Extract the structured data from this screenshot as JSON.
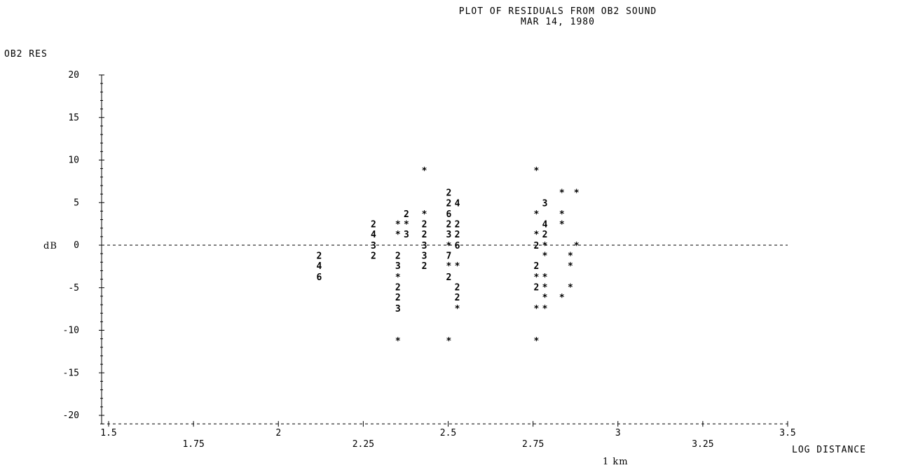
{
  "chart_data": {
    "type": "scatter",
    "title": "PLOT OF RESIDUALS FROM OB2 SOUND",
    "subtitle": "MAR 14, 1980",
    "ylabel": "OB2 RES",
    "ylabel_unit": "dB",
    "xlabel": "LOG DISTANCE",
    "x_annotation": "1 km",
    "xlim": [
      1.5,
      3.5
    ],
    "ylim": [
      -21,
      20
    ],
    "x_ticks": [
      "1.5",
      "1.75",
      "2",
      "2.25",
      "2.5",
      "2.75",
      "3",
      "3.25",
      "3.5"
    ],
    "y_ticks": [
      "20",
      "15",
      "10",
      "5",
      "0",
      "-5",
      "-10",
      "-15",
      "-20"
    ],
    "zero_line": true,
    "points": [
      {
        "x": 2.12,
        "y": -1.2,
        "label": "2"
      },
      {
        "x": 2.12,
        "y": -2.4,
        "label": "4"
      },
      {
        "x": 2.12,
        "y": -3.7,
        "label": "6"
      },
      {
        "x": 2.28,
        "y": 2.5,
        "label": "2"
      },
      {
        "x": 2.28,
        "y": 1.3,
        "label": "4"
      },
      {
        "x": 2.28,
        "y": 0.0,
        "label": "3"
      },
      {
        "x": 2.28,
        "y": -1.2,
        "label": "2"
      },
      {
        "x": 2.352,
        "y": 2.5,
        "label": "*"
      },
      {
        "x": 2.352,
        "y": 1.3,
        "label": "*"
      },
      {
        "x": 2.352,
        "y": -1.2,
        "label": "2"
      },
      {
        "x": 2.352,
        "y": -2.4,
        "label": "3"
      },
      {
        "x": 2.352,
        "y": -3.7,
        "label": "*"
      },
      {
        "x": 2.352,
        "y": -4.9,
        "label": "2"
      },
      {
        "x": 2.352,
        "y": -6.1,
        "label": "2"
      },
      {
        "x": 2.352,
        "y": -7.4,
        "label": "3"
      },
      {
        "x": 2.352,
        "y": -11.2,
        "label": "*"
      },
      {
        "x": 2.377,
        "y": 3.7,
        "label": "2"
      },
      {
        "x": 2.377,
        "y": 2.5,
        "label": "*"
      },
      {
        "x": 2.377,
        "y": 1.3,
        "label": "3"
      },
      {
        "x": 2.43,
        "y": 8.8,
        "label": "*"
      },
      {
        "x": 2.43,
        "y": 3.7,
        "label": "*"
      },
      {
        "x": 2.43,
        "y": 2.5,
        "label": "2"
      },
      {
        "x": 2.43,
        "y": 1.3,
        "label": "2"
      },
      {
        "x": 2.43,
        "y": 0.0,
        "label": "3"
      },
      {
        "x": 2.43,
        "y": -1.2,
        "label": "3"
      },
      {
        "x": 2.43,
        "y": -2.4,
        "label": "2"
      },
      {
        "x": 2.502,
        "y": 6.2,
        "label": "2"
      },
      {
        "x": 2.502,
        "y": 5.0,
        "label": "2"
      },
      {
        "x": 2.502,
        "y": 3.7,
        "label": "6"
      },
      {
        "x": 2.502,
        "y": 2.5,
        "label": "2"
      },
      {
        "x": 2.502,
        "y": 1.3,
        "label": "3"
      },
      {
        "x": 2.502,
        "y": 0.0,
        "label": "*"
      },
      {
        "x": 2.502,
        "y": -1.2,
        "label": "7"
      },
      {
        "x": 2.502,
        "y": -2.4,
        "label": "*"
      },
      {
        "x": 2.502,
        "y": -3.7,
        "label": "2"
      },
      {
        "x": 2.502,
        "y": -11.2,
        "label": "*"
      },
      {
        "x": 2.527,
        "y": 5.0,
        "label": "4"
      },
      {
        "x": 2.527,
        "y": 2.5,
        "label": "2"
      },
      {
        "x": 2.527,
        "y": 1.3,
        "label": "2"
      },
      {
        "x": 2.527,
        "y": 0.0,
        "label": "6"
      },
      {
        "x": 2.527,
        "y": -2.4,
        "label": "*"
      },
      {
        "x": 2.527,
        "y": -4.9,
        "label": "2"
      },
      {
        "x": 2.527,
        "y": -6.1,
        "label": "2"
      },
      {
        "x": 2.527,
        "y": -7.4,
        "label": "*"
      },
      {
        "x": 2.76,
        "y": 8.8,
        "label": "*"
      },
      {
        "x": 2.76,
        "y": 3.7,
        "label": "*"
      },
      {
        "x": 2.76,
        "y": 1.3,
        "label": "*"
      },
      {
        "x": 2.76,
        "y": 0.0,
        "label": "2"
      },
      {
        "x": 2.76,
        "y": -2.4,
        "label": "2"
      },
      {
        "x": 2.76,
        "y": -3.7,
        "label": "*"
      },
      {
        "x": 2.76,
        "y": -4.9,
        "label": "2"
      },
      {
        "x": 2.76,
        "y": -7.4,
        "label": "*"
      },
      {
        "x": 2.76,
        "y": -11.2,
        "label": "*"
      },
      {
        "x": 2.785,
        "y": 5.0,
        "label": "3"
      },
      {
        "x": 2.785,
        "y": 2.5,
        "label": "4"
      },
      {
        "x": 2.785,
        "y": 1.3,
        "label": "2"
      },
      {
        "x": 2.785,
        "y": 0.0,
        "label": "*"
      },
      {
        "x": 2.785,
        "y": -1.2,
        "label": "*"
      },
      {
        "x": 2.785,
        "y": -3.7,
        "label": "*"
      },
      {
        "x": 2.785,
        "y": -4.9,
        "label": "*"
      },
      {
        "x": 2.785,
        "y": -6.1,
        "label": "*"
      },
      {
        "x": 2.785,
        "y": -7.4,
        "label": "*"
      },
      {
        "x": 2.835,
        "y": 6.2,
        "label": "*"
      },
      {
        "x": 2.835,
        "y": 3.7,
        "label": "*"
      },
      {
        "x": 2.835,
        "y": 2.5,
        "label": "*"
      },
      {
        "x": 2.835,
        "y": -6.1,
        "label": "*"
      },
      {
        "x": 2.86,
        "y": -1.2,
        "label": "*"
      },
      {
        "x": 2.86,
        "y": -2.4,
        "label": "*"
      },
      {
        "x": 2.86,
        "y": -4.9,
        "label": "*"
      },
      {
        "x": 2.878,
        "y": 6.2,
        "label": "*"
      },
      {
        "x": 2.878,
        "y": 0.0,
        "label": "*"
      }
    ]
  }
}
